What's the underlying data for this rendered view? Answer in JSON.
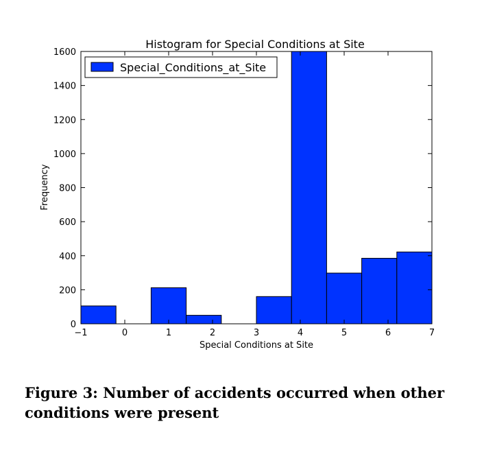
{
  "chart_data": {
    "type": "bar",
    "title": "Histogram for Special Conditions at Site",
    "xlabel": "Special Conditions at Site",
    "ylabel": "Frequency",
    "xlim": [
      -1,
      7
    ],
    "ylim": [
      0,
      1600
    ],
    "x_ticks": [
      "−1",
      "0",
      "1",
      "2",
      "3",
      "4",
      "5",
      "6",
      "7"
    ],
    "y_ticks": [
      "0",
      "200",
      "400",
      "600",
      "800",
      "1000",
      "1200",
      "1400",
      "1600"
    ],
    "bins": [
      {
        "x0": -1.0,
        "x1": -0.2,
        "value": 105
      },
      {
        "x0": -0.2,
        "x1": 0.6,
        "value": 0
      },
      {
        "x0": 0.6,
        "x1": 1.4,
        "value": 212
      },
      {
        "x0": 1.4,
        "x1": 2.2,
        "value": 50
      },
      {
        "x0": 2.2,
        "x1": 3.0,
        "value": 0
      },
      {
        "x0": 3.0,
        "x1": 3.8,
        "value": 160
      },
      {
        "x0": 3.8,
        "x1": 4.6,
        "value": 1600
      },
      {
        "x0": 4.6,
        "x1": 5.4,
        "value": 298
      },
      {
        "x0": 5.4,
        "x1": 6.2,
        "value": 385
      },
      {
        "x0": 6.2,
        "x1": 7.0,
        "value": 422
      }
    ],
    "series": [
      {
        "name": "Special_Conditions_at_Site",
        "color": "#0033ff"
      }
    ],
    "legend_position": "top-left",
    "grid": false
  },
  "caption": "Figure 3: Number of accidents occurred when other conditions were present"
}
